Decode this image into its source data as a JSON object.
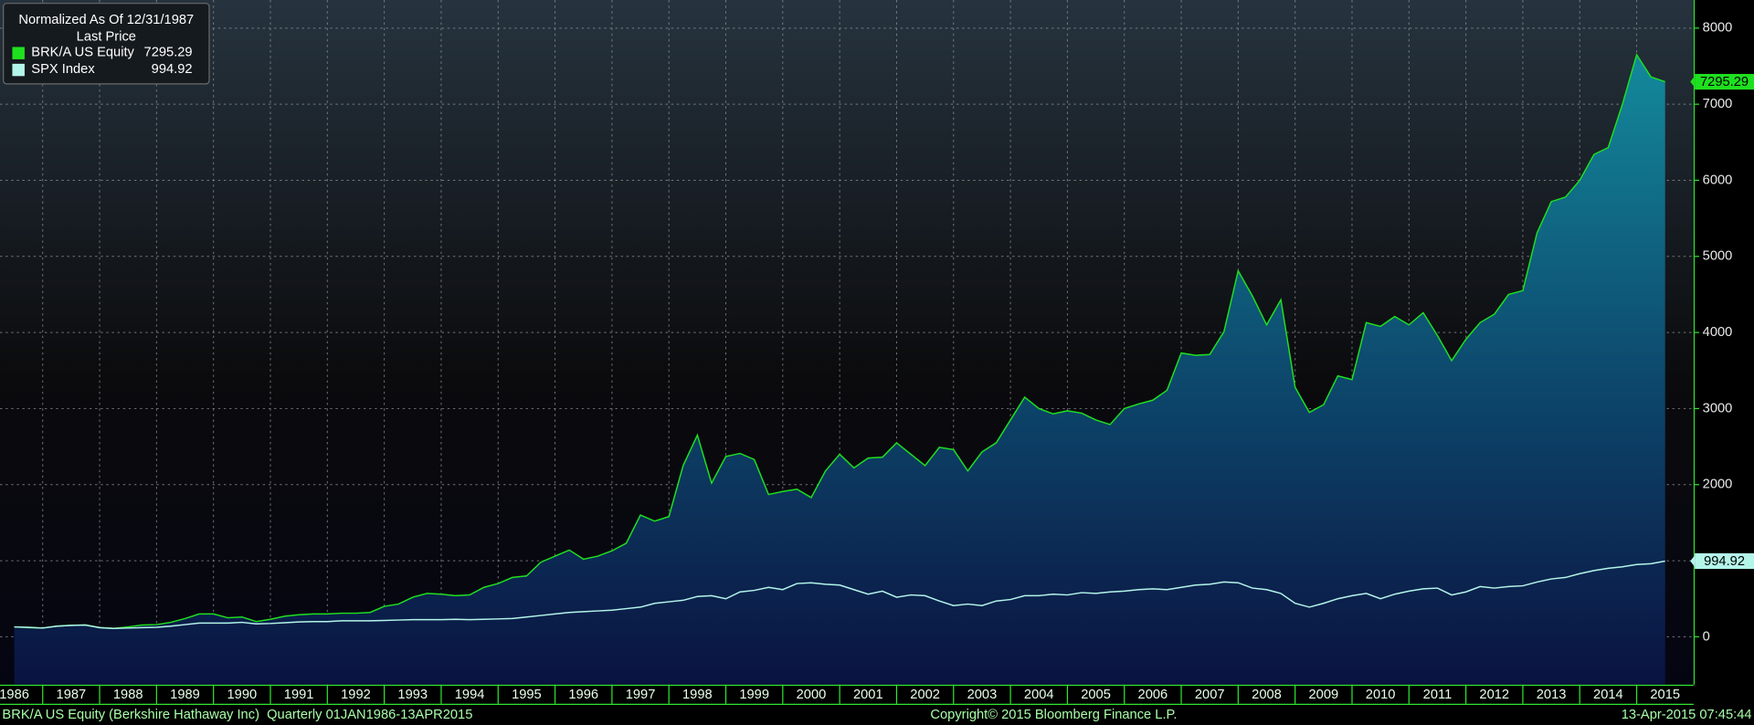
{
  "chart_data": {
    "type": "line",
    "legend_title": "Normalized As Of 12/31/1987",
    "legend_subtitle": "Last Price",
    "footer_left": "BRK/A US Equity (Berkshire Hathaway Inc)  Quarterly 01JAN1986-13APR2015",
    "footer_center": "Copyright© 2015 Bloomberg Finance L.P.",
    "footer_right": "13-Apr-2015 07:45:44",
    "x": [
      1986.5,
      1986.75,
      1987,
      1987.25,
      1987.5,
      1987.75,
      1988,
      1988.25,
      1988.5,
      1988.75,
      1989,
      1989.25,
      1989.5,
      1989.75,
      1990,
      1990.25,
      1990.5,
      1990.75,
      1991,
      1991.25,
      1991.5,
      1991.75,
      1992,
      1992.25,
      1992.5,
      1992.75,
      1993,
      1993.25,
      1993.5,
      1993.75,
      1994,
      1994.25,
      1994.5,
      1994.75,
      1995,
      1995.25,
      1995.5,
      1995.75,
      1996,
      1996.25,
      1996.5,
      1996.75,
      1997,
      1997.25,
      1997.5,
      1997.75,
      1998,
      1998.25,
      1998.5,
      1998.75,
      1999,
      1999.25,
      1999.5,
      1999.75,
      2000,
      2000.25,
      2000.5,
      2000.75,
      2001,
      2001.25,
      2001.5,
      2001.75,
      2002,
      2002.25,
      2002.5,
      2002.75,
      2003,
      2003.25,
      2003.5,
      2003.75,
      2004,
      2004.25,
      2004.5,
      2004.75,
      2005,
      2005.25,
      2005.5,
      2005.75,
      2006,
      2006.25,
      2006.5,
      2006.75,
      2007,
      2007.25,
      2007.5,
      2007.75,
      2008,
      2008.25,
      2008.5,
      2008.75,
      2009,
      2009.25,
      2009.5,
      2009.75,
      2010,
      2010.25,
      2010.5,
      2010.75,
      2011,
      2011.25,
      2011.5,
      2011.75,
      2012,
      2012.25,
      2012.5,
      2012.75,
      2013,
      2013.25,
      2013.5,
      2013.75,
      2014,
      2014.25,
      2014.5,
      2014.75,
      2015,
      2015.25,
      2015.5
    ],
    "series": [
      {
        "name": "BRK/A US Equity",
        "color": "#1fe01f",
        "area": true,
        "values": [
          130,
          120,
          115,
          140,
          150,
          155,
          120,
          110,
          130,
          155,
          160,
          190,
          240,
          300,
          300,
          250,
          260,
          200,
          230,
          270,
          290,
          300,
          300,
          310,
          310,
          320,
          400,
          430,
          520,
          570,
          560,
          540,
          550,
          650,
          700,
          780,
          800,
          980,
          1060,
          1140,
          1020,
          1060,
          1130,
          1230,
          1600,
          1520,
          1580,
          2250,
          2650,
          2020,
          2370,
          2410,
          2330,
          1870,
          1910,
          1940,
          1830,
          2180,
          2400,
          2220,
          2350,
          2360,
          2550,
          2400,
          2250,
          2490,
          2460,
          2180,
          2430,
          2550,
          2850,
          3150,
          3000,
          2930,
          2970,
          2940,
          2850,
          2790,
          3000,
          3060,
          3110,
          3240,
          3730,
          3700,
          3710,
          4010,
          4810,
          4480,
          4100,
          4430,
          3280,
          2950,
          3050,
          3430,
          3380,
          4130,
          4080,
          4210,
          4100,
          4260,
          3960,
          3630,
          3910,
          4130,
          4240,
          4500,
          4550,
          5310,
          5720,
          5780,
          6000,
          6340,
          6430,
          7000,
          7650,
          7360,
          7295.29
        ]
      },
      {
        "name": "SPX Index",
        "color": "#b4f5ea",
        "area": false,
        "values": [
          130,
          125,
          115,
          140,
          150,
          155,
          120,
          110,
          115,
          120,
          125,
          140,
          160,
          180,
          180,
          180,
          190,
          170,
          175,
          185,
          195,
          200,
          200,
          210,
          210,
          210,
          215,
          220,
          225,
          225,
          225,
          230,
          225,
          230,
          235,
          240,
          260,
          280,
          300,
          320,
          330,
          340,
          350,
          370,
          390,
          440,
          460,
          480,
          530,
          540,
          500,
          590,
          610,
          650,
          620,
          700,
          710,
          690,
          680,
          620,
          560,
          600,
          520,
          550,
          540,
          470,
          410,
          430,
          410,
          470,
          490,
          540,
          540,
          560,
          550,
          580,
          570,
          590,
          600,
          620,
          630,
          620,
          650,
          680,
          690,
          720,
          710,
          640,
          620,
          570,
          440,
          390,
          440,
          500,
          540,
          570,
          500,
          560,
          600,
          630,
          640,
          550,
          590,
          660,
          640,
          660,
          670,
          720,
          760,
          780,
          830,
          870,
          900,
          920,
          950,
          960,
          994.92
        ]
      }
    ],
    "xlim": [
      1986.25,
      2016
    ],
    "xticks": [
      1986,
      1987,
      1988,
      1989,
      1990,
      1991,
      1992,
      1993,
      1994,
      1995,
      1996,
      1997,
      1998,
      1999,
      2000,
      2001,
      2002,
      2003,
      2004,
      2005,
      2006,
      2007,
      2008,
      2009,
      2010,
      2011,
      2012,
      2013,
      2014,
      2015
    ],
    "ylim": [
      -630,
      8370
    ],
    "yticks": [
      0,
      1000,
      2000,
      3000,
      4000,
      5000,
      6000,
      7000,
      8000
    ],
    "grid": true
  }
}
